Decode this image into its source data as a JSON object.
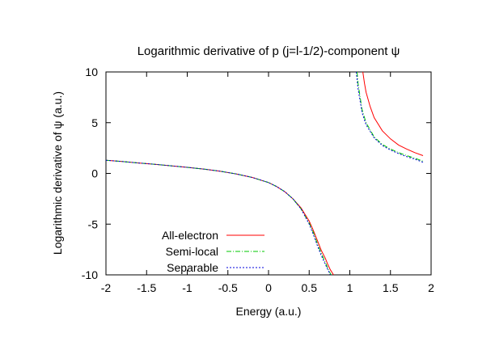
{
  "chart_data": {
    "type": "line",
    "title": "Logarithmic derivative of p (j=l-1/2)-component ψ",
    "xlabel": "Energy (a.u.)",
    "ylabel": "Logarithmic derivative of ψ (a.u.)",
    "xlim": [
      -2,
      2
    ],
    "ylim": [
      -10,
      10
    ],
    "xticks": [
      "-2",
      "-1.5",
      "-1",
      "-0.5",
      "0",
      "0.5",
      "1",
      "1.5",
      "2"
    ],
    "yticks": [
      "-10",
      "-5",
      "0",
      "5",
      "10"
    ],
    "grid": false,
    "legend_position": "bottom-left",
    "series": [
      {
        "name": "All-electron",
        "color": "#ff0000",
        "dash": "solid",
        "segments": [
          {
            "x": [
              -2.0,
              -1.8,
              -1.6,
              -1.4,
              -1.2,
              -1.0,
              -0.8,
              -0.6,
              -0.4,
              -0.2,
              0.0,
              0.1,
              0.2,
              0.3,
              0.4,
              0.5,
              0.55,
              0.6,
              0.65,
              0.7,
              0.73,
              0.76,
              0.8
            ],
            "y": [
              1.3,
              1.17,
              1.03,
              0.9,
              0.75,
              0.6,
              0.43,
              0.22,
              -0.05,
              -0.4,
              -0.9,
              -1.3,
              -1.8,
              -2.5,
              -3.4,
              -4.7,
              -5.6,
              -6.6,
              -7.6,
              -8.4,
              -9.0,
              -9.5,
              -10.0
            ]
          },
          {
            "x": [
              1.16,
              1.18,
              1.2,
              1.25,
              1.3,
              1.4,
              1.5,
              1.6,
              1.7,
              1.8,
              1.9
            ],
            "y": [
              10.0,
              8.9,
              8.0,
              6.6,
              5.5,
              4.2,
              3.4,
              2.8,
              2.4,
              2.05,
              1.75
            ]
          }
        ]
      },
      {
        "name": "Semi-local",
        "color": "#00c800",
        "dash": "6,2,1,2",
        "segments": [
          {
            "x": [
              -2.0,
              -1.8,
              -1.6,
              -1.4,
              -1.2,
              -1.0,
              -0.8,
              -0.6,
              -0.4,
              -0.2,
              0.0,
              0.1,
              0.2,
              0.3,
              0.4,
              0.5,
              0.55,
              0.6,
              0.65,
              0.7,
              0.73,
              0.77
            ],
            "y": [
              1.3,
              1.17,
              1.03,
              0.9,
              0.75,
              0.6,
              0.43,
              0.22,
              -0.05,
              -0.4,
              -0.9,
              -1.3,
              -1.8,
              -2.5,
              -3.5,
              -4.9,
              -5.8,
              -6.9,
              -7.9,
              -8.8,
              -9.4,
              -10.0
            ]
          },
          {
            "x": [
              1.09,
              1.1,
              1.15,
              1.2,
              1.3,
              1.4,
              1.5,
              1.6,
              1.7,
              1.8,
              1.9
            ],
            "y": [
              10.0,
              8.9,
              6.3,
              5.0,
              3.6,
              2.85,
              2.4,
              2.05,
              1.75,
              1.5,
              1.2
            ]
          }
        ]
      },
      {
        "name": "Separable",
        "color": "#0000dc",
        "dash": "2,2",
        "segments": [
          {
            "x": [
              -2.0,
              -1.8,
              -1.6,
              -1.4,
              -1.2,
              -1.0,
              -0.8,
              -0.6,
              -0.4,
              -0.2,
              0.0,
              0.1,
              0.2,
              0.3,
              0.4,
              0.5,
              0.55,
              0.6,
              0.65,
              0.7,
              0.73,
              0.76
            ],
            "y": [
              1.3,
              1.17,
              1.03,
              0.9,
              0.75,
              0.6,
              0.43,
              0.22,
              -0.05,
              -0.4,
              -0.9,
              -1.3,
              -1.8,
              -2.5,
              -3.5,
              -5.0,
              -6.0,
              -7.1,
              -8.1,
              -9.0,
              -9.5,
              -10.0
            ]
          },
          {
            "x": [
              1.08,
              1.1,
              1.15,
              1.2,
              1.3,
              1.4,
              1.5,
              1.6,
              1.7,
              1.8,
              1.9
            ],
            "y": [
              10.0,
              8.4,
              6.0,
              4.8,
              3.5,
              2.75,
              2.3,
              1.95,
              1.65,
              1.4,
              1.1
            ]
          }
        ]
      }
    ]
  }
}
